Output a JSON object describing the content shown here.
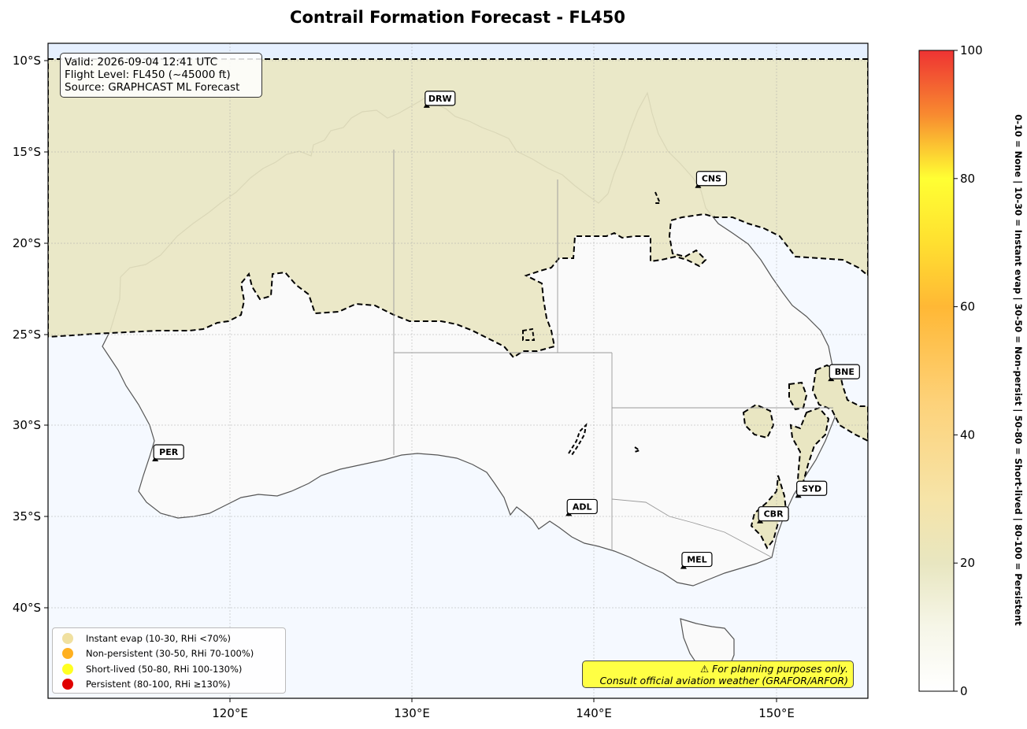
{
  "title": "Contrail Formation Forecast - FL450",
  "info": {
    "valid": "Valid: 2026-09-04 12:41 UTC",
    "flight_level": "Flight Level: FL450 (~45000 ft)",
    "source": "Source: GRAPHCAST ML Forecast"
  },
  "axes": {
    "lat_ticks": [
      "10°S",
      "15°S",
      "20°S",
      "25°S",
      "30°S",
      "35°S",
      "40°S"
    ],
    "lon_ticks": [
      "120°E",
      "130°E",
      "140°E",
      "150°E"
    ]
  },
  "cities": [
    {
      "code": "DRW",
      "lon": 130.8,
      "lat": -12.5
    },
    {
      "code": "CNS",
      "lon": 145.7,
      "lat": -16.9
    },
    {
      "code": "BNE",
      "lon": 153.0,
      "lat": -27.5
    },
    {
      "code": "PER",
      "lon": 115.9,
      "lat": -31.9
    },
    {
      "code": "ADL",
      "lon": 138.6,
      "lat": -34.9
    },
    {
      "code": "SYD",
      "lon": 151.2,
      "lat": -33.9
    },
    {
      "code": "CBR",
      "lon": 149.1,
      "lat": -35.3
    },
    {
      "code": "MEL",
      "lon": 144.9,
      "lat": -37.8
    }
  ],
  "legend": [
    {
      "label": "Instant evap (10-30, RHi <70%)",
      "color": "#f0e0a0"
    },
    {
      "label": "Non-persistent (30-50, RHi 70-100%)",
      "color": "#ffb020"
    },
    {
      "label": "Short-lived (50-80, RHi 100-130%)",
      "color": "#ffff22"
    },
    {
      "label": "Persistent (80-100, RHi ≥130%)",
      "color": "#e00000"
    }
  ],
  "warning": {
    "line1": "⚠ For planning purposes only.",
    "line2": "Consult official aviation weather (GRAFOR/ARFOR)"
  },
  "colorbar": {
    "ticks": [
      "0",
      "20",
      "40",
      "60",
      "80",
      "100"
    ],
    "side_label": "0-10 = None  |  10-30 = Instant evap  |  30-50 = Non-persist  |  50-80 = Short-lived  |  80-100 = Persistent"
  },
  "colors": {
    "ocean": "#f5f9ff",
    "land": "#fafafa",
    "instant_zone": "#e9e6c2",
    "north_band": "#e6f0ff"
  }
}
